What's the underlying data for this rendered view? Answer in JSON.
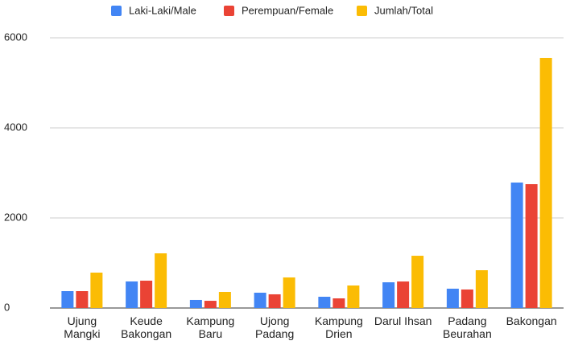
{
  "chart_data": {
    "type": "bar",
    "categories": [
      "Ujung Mangki",
      "Keude Bakongan",
      "Kampung Baru",
      "Ujong Padang",
      "Kampung Drien",
      "Darul Ihsan",
      "Padang Beurahan",
      "Bakongan"
    ],
    "series": [
      {
        "name": "Laki-Laki/Male",
        "color": "#4285f4",
        "values": [
          375,
          590,
          179,
          340,
          250,
          571,
          429,
          2786
        ]
      },
      {
        "name": "Perempuan/Female",
        "color": "#ea4335",
        "values": [
          375,
          607,
          160,
          304,
          214,
          589,
          411,
          2750
        ]
      },
      {
        "name": "Jumlah/Total",
        "color": "#fbbc04",
        "values": [
          786,
          1214,
          357,
          679,
          500,
          1160,
          839,
          5554
        ]
      }
    ],
    "ylim": [
      0,
      6000
    ],
    "yticks": [
      0,
      2000,
      4000,
      6000
    ],
    "grid": true,
    "legend": "top"
  }
}
